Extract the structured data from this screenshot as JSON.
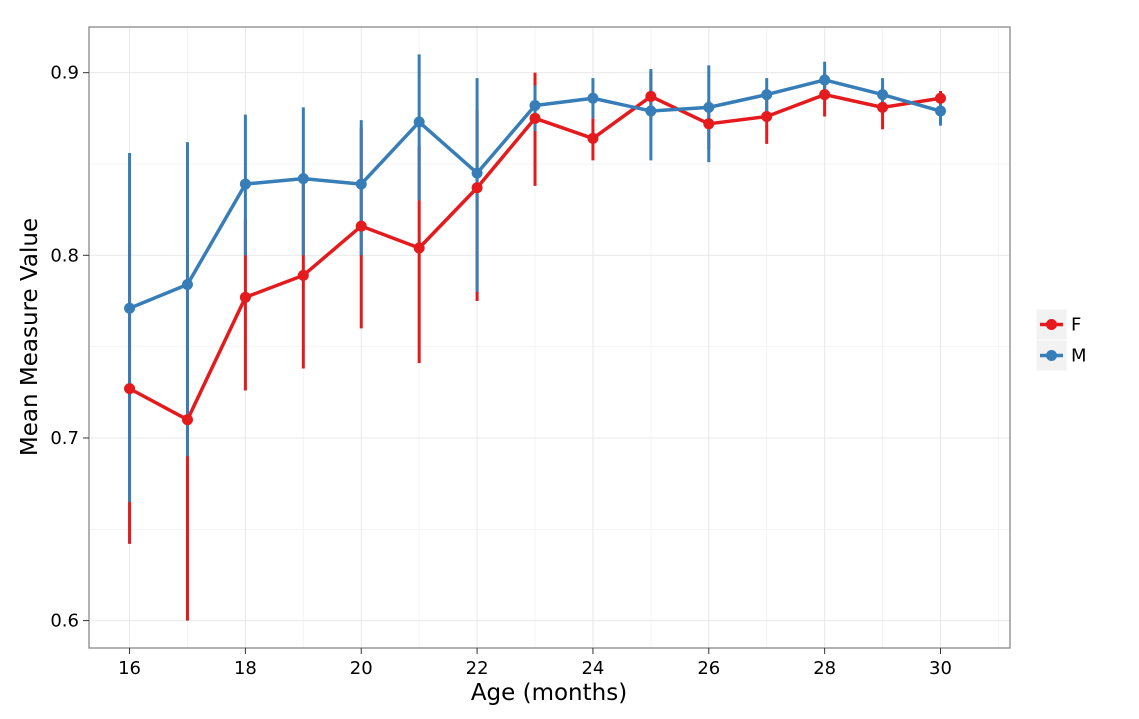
{
  "chart_data": {
    "type": "line",
    "xlabel": "Age (months)",
    "ylabel": "Mean Measure Value",
    "xlim": [
      15.3,
      31.2
    ],
    "ylim": [
      0.585,
      0.925
    ],
    "x_ticks": [
      16,
      18,
      20,
      22,
      24,
      26,
      28,
      30
    ],
    "y_ticks": [
      0.6,
      0.7,
      0.8,
      0.9
    ],
    "y_tick_labels": [
      "0.6",
      "0.7",
      "0.8",
      "0.9"
    ],
    "grid": true,
    "legend_position": "right",
    "x": [
      16,
      17,
      18,
      19,
      20,
      21,
      22,
      23,
      24,
      25,
      26,
      27,
      28,
      29,
      30
    ],
    "series": [
      {
        "name": "F",
        "color": "#e41a1c",
        "values": [
          0.727,
          0.71,
          0.777,
          0.789,
          0.816,
          0.804,
          0.837,
          0.875,
          0.864,
          0.887,
          0.872,
          0.876,
          0.888,
          0.881,
          0.886
        ],
        "lower": [
          0.642,
          0.6,
          0.726,
          0.738,
          0.76,
          0.741,
          0.775,
          0.838,
          0.852,
          0.874,
          0.858,
          0.861,
          0.876,
          0.869,
          0.88
        ],
        "upper": [
          0.806,
          0.8,
          0.82,
          0.84,
          0.87,
          0.86,
          0.88,
          0.9,
          0.875,
          0.9,
          0.885,
          0.89,
          0.9,
          0.892,
          0.89
        ]
      },
      {
        "name": "M",
        "color": "#377eb8",
        "values": [
          0.771,
          0.784,
          0.839,
          0.842,
          0.839,
          0.873,
          0.845,
          0.882,
          0.886,
          0.879,
          0.881,
          0.888,
          0.896,
          0.888,
          0.879
        ],
        "lower": [
          0.665,
          0.69,
          0.8,
          0.8,
          0.8,
          0.83,
          0.78,
          0.868,
          0.875,
          0.852,
          0.851,
          0.878,
          0.888,
          0.88,
          0.871
        ],
        "upper": [
          0.856,
          0.862,
          0.877,
          0.881,
          0.874,
          0.91,
          0.897,
          0.893,
          0.897,
          0.902,
          0.904,
          0.897,
          0.906,
          0.897,
          0.886
        ]
      }
    ]
  }
}
